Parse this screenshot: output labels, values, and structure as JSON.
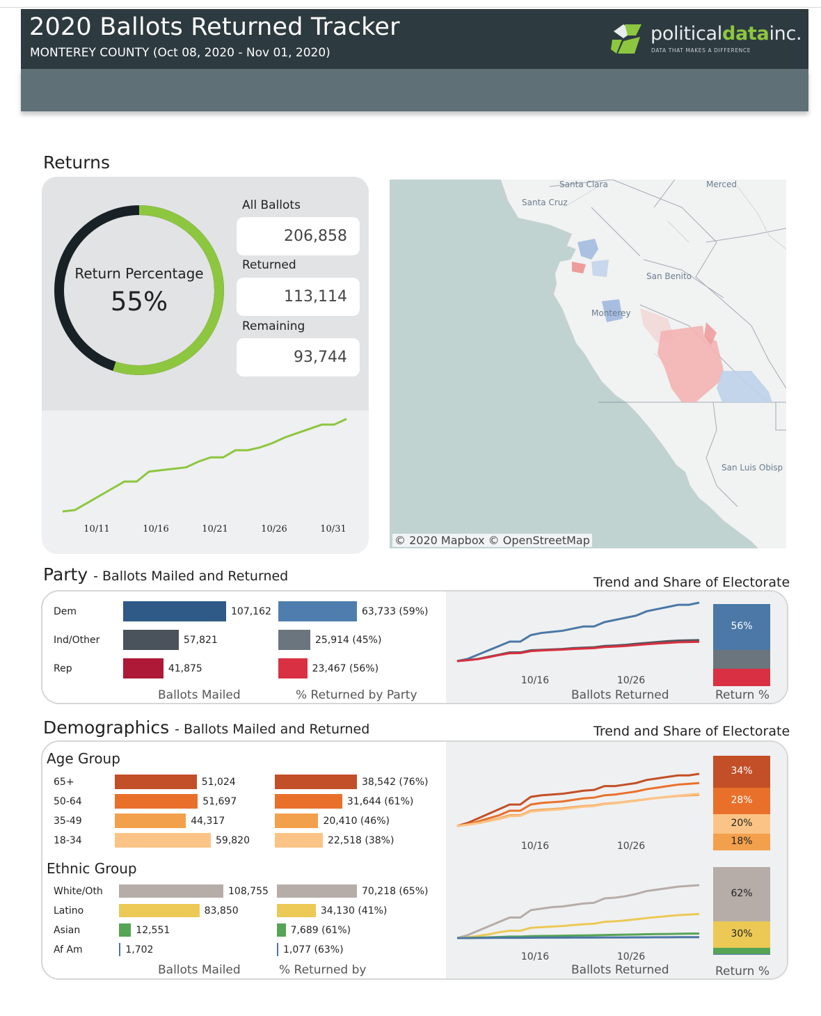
{
  "header": {
    "title": "2020 Ballots Returned Tracker",
    "subtitle": "MONTEREY COUNTY (Oct 08, 2020 - Nov 01, 2020)",
    "logo_text_a": "political",
    "logo_text_b": "data",
    "logo_text_c": "inc.",
    "logo_tagline": "DATA THAT MAKES A DIFFERENCE",
    "colors": {
      "bar": "#2d3a40",
      "subbar": "#5f7077",
      "logo_green": "#8dc63f"
    }
  },
  "returns": {
    "section_title": "Returns",
    "ring_label": "Return Percentage",
    "ring_value": "55%",
    "ring_fraction": 0.55,
    "all_label": "All Ballots",
    "all_value": "206,858",
    "returned_label": "Returned",
    "returned_value": "113,114",
    "remaining_label": "Remaining",
    "remaining_value": "93,744",
    "trend_ticks": [
      "10/11",
      "10/16",
      "10/21",
      "10/26",
      "10/31"
    ],
    "trend_values": [
      0,
      1,
      6,
      11,
      16,
      21,
      21,
      28,
      29,
      30,
      31,
      35,
      38,
      38,
      43,
      43,
      45,
      48,
      52,
      55,
      58,
      61,
      61,
      65
    ],
    "colors": {
      "returned": "#8dc63f",
      "remaining": "#182126"
    }
  },
  "map": {
    "labels": [
      "Santa Clara",
      "Merced",
      "Santa Cruz",
      "San Benito",
      "Monterey",
      "San Luis Obisp"
    ],
    "credit": "© 2020 Mapbox © OpenStreetMap"
  },
  "party": {
    "title": "Party",
    "title_suffix": "Ballots Mailed and Returned",
    "right_caption": "Trend and Share of Electorate",
    "rows": [
      {
        "label": "Dem",
        "mailed": 107162,
        "mailed_text": "107,162",
        "returned": 63733,
        "returned_text": "63,733 (59%)",
        "color": "#2f5a87",
        "ret_color": "#4f7eae"
      },
      {
        "label": "Ind/Other",
        "mailed": 57821,
        "mailed_text": "57,821",
        "returned": 25914,
        "returned_text": "25,914 (45%)",
        "color": "#4a525c",
        "ret_color": "#6a757e"
      },
      {
        "label": "Rep",
        "mailed": 41875,
        "mailed_text": "41,875",
        "returned": 23467,
        "returned_text": "23,467 (56%)",
        "color": "#ad1936",
        "ret_color": "#da3043"
      }
    ],
    "foot_mailed": "Ballots Mailed",
    "foot_pct": "% Returned by Party",
    "foot_trend": "Ballots Returned",
    "foot_share": "Return %",
    "ticks": [
      "10/16",
      "10/26"
    ],
    "share": [
      {
        "label": "56%",
        "value": 56,
        "color": "#4b78a6"
      },
      {
        "label": "",
        "value": 23,
        "color": "#6b757e"
      },
      {
        "label": "",
        "value": 21,
        "color": "#da3043"
      }
    ],
    "trend_series": [
      {
        "name": "Dem",
        "color": "#4b78a6",
        "values": [
          0,
          1,
          3,
          5,
          7,
          9,
          9,
          12,
          13,
          13.5,
          14,
          15,
          16,
          16,
          18,
          19,
          20,
          21,
          23,
          24,
          25,
          26,
          26,
          27
        ]
      },
      {
        "name": "Ind/Other",
        "color": "#4e5660",
        "values": [
          0,
          0.5,
          1,
          2,
          3,
          4,
          4,
          5,
          5.2,
          5.4,
          5.6,
          6,
          6.2,
          6.4,
          7,
          7.2,
          7.5,
          8,
          8.4,
          8.8,
          9.2,
          9.5,
          9.6,
          9.7
        ]
      },
      {
        "name": "Rep",
        "color": "#d9303f",
        "values": [
          0,
          0.4,
          0.9,
          1.8,
          2.8,
          3.6,
          3.7,
          4.6,
          4.9,
          5.1,
          5.3,
          5.6,
          5.8,
          6,
          6.5,
          6.7,
          7,
          7.4,
          7.8,
          8.1,
          8.4,
          8.7,
          8.8,
          8.9
        ]
      }
    ]
  },
  "demo": {
    "title": "Demographics",
    "title_suffix": "Ballots Mailed and Returned",
    "right_caption": "Trend and Share of Electorate",
    "age_title": "Age Group",
    "age_rows": [
      {
        "label": "65+",
        "mailed": 51024,
        "mailed_text": "51,024",
        "returned": 38542,
        "returned_text": "38,542 (76%)",
        "color": "#c24f27"
      },
      {
        "label": "50-64",
        "mailed": 51697,
        "mailed_text": "51,697",
        "returned": 31644,
        "returned_text": "31,644 (61%)",
        "color": "#e9702b"
      },
      {
        "label": "35-49",
        "mailed": 44317,
        "mailed_text": "44,317",
        "returned": 20410,
        "returned_text": "20,410 (46%)",
        "color": "#f3a04d"
      },
      {
        "label": "18-34",
        "mailed": 59820,
        "mailed_text": "59,820",
        "returned": 22518,
        "returned_text": "22,518 (38%)",
        "color": "#fbc486"
      }
    ],
    "age_share": [
      {
        "label": "34%",
        "value": 34,
        "color": "#c24f27"
      },
      {
        "label": "28%",
        "value": 28,
        "color": "#e9702b"
      },
      {
        "label": "20%",
        "value": 20,
        "color": "#fbc486"
      },
      {
        "label": "18%",
        "value": 18,
        "color": "#f3a04d"
      }
    ],
    "age_trend": [
      {
        "name": "65+",
        "color": "#c24f27",
        "values": [
          0,
          2,
          5,
          8,
          11,
          14,
          14,
          19,
          20,
          20.5,
          21,
          22,
          23,
          23.5,
          26,
          26,
          27,
          28,
          30,
          31,
          32,
          33,
          33,
          34
        ]
      },
      {
        "name": "50-64",
        "color": "#e9702b",
        "values": [
          0,
          1,
          3,
          5,
          7,
          10,
          10,
          14,
          15,
          15.5,
          16,
          17,
          18,
          18.5,
          20,
          20.5,
          21.5,
          22.5,
          24,
          25,
          26,
          27,
          27.5,
          28
        ]
      },
      {
        "name": "35-49",
        "color": "#f3a04d",
        "values": [
          0,
          1,
          2,
          3.5,
          5,
          7,
          7,
          10,
          10.6,
          11,
          11.5,
          12.3,
          13,
          13.4,
          14.5,
          15,
          15.8,
          16.6,
          17.5,
          18.3,
          19,
          19.6,
          20,
          20.3
        ]
      },
      {
        "name": "18-34",
        "color": "#fbc486",
        "values": [
          0,
          0.8,
          1.8,
          3.2,
          4.6,
          6.4,
          6.6,
          9.4,
          10,
          10.5,
          11,
          11.8,
          12.6,
          13,
          14.2,
          14.8,
          15.6,
          16.4,
          17.4,
          18.3,
          19.1,
          19.8,
          20.4,
          21
        ]
      }
    ],
    "ethnic_title": "Ethnic Group",
    "ethnic_rows": [
      {
        "label": "White/Oth",
        "mailed": 108755,
        "mailed_text": "108,755",
        "returned": 70218,
        "returned_text": "70,218 (65%)",
        "color": "#b6aca8"
      },
      {
        "label": "Latino",
        "mailed": 83850,
        "mailed_text": "83,850",
        "returned": 34130,
        "returned_text": "34,130 (41%)",
        "color": "#ecc955"
      },
      {
        "label": "Asian",
        "mailed": 12551,
        "mailed_text": "12,551",
        "returned": 7689,
        "returned_text": "7,689 (61%)",
        "color": "#56a455"
      },
      {
        "label": "Af Am",
        "mailed": 1702,
        "mailed_text": "1,702",
        "returned": 1077,
        "returned_text": "1,077 (63%)",
        "color": "#4a76a4"
      }
    ],
    "ethnic_share": [
      {
        "label": "62%",
        "value": 62,
        "color": "#b6aca8"
      },
      {
        "label": "30%",
        "value": 30,
        "color": "#ecc955"
      },
      {
        "label": "",
        "value": 7,
        "color": "#56a455"
      },
      {
        "label": "",
        "value": 1,
        "color": "#4a76a4"
      }
    ],
    "ethnic_trend": [
      {
        "name": "White/Oth",
        "color": "#b6aca8",
        "values": [
          0,
          2,
          5,
          8,
          11,
          14,
          14,
          19,
          20,
          21,
          21.5,
          22.5,
          23.5,
          24,
          27,
          27.5,
          28.5,
          30,
          32,
          33,
          34,
          35,
          35.5,
          36
        ]
      },
      {
        "name": "Latino",
        "color": "#ecc955",
        "values": [
          0,
          0.5,
          1.5,
          2.5,
          4,
          5,
          5,
          7,
          7.4,
          7.8,
          8.2,
          8.8,
          9.4,
          9.8,
          11,
          11.4,
          12,
          12.8,
          13.6,
          14.3,
          15,
          15.6,
          16,
          16.4
        ]
      },
      {
        "name": "Asian",
        "color": "#56a455",
        "values": [
          0,
          0.1,
          0.3,
          0.5,
          0.7,
          1,
          1,
          1.3,
          1.4,
          1.5,
          1.6,
          1.7,
          1.8,
          1.9,
          2.1,
          2.2,
          2.3,
          2.4,
          2.6,
          2.7,
          2.8,
          2.9,
          3,
          3.1
        ]
      },
      {
        "name": "Af Am",
        "color": "#4a76a4",
        "values": [
          0,
          0,
          0.05,
          0.1,
          0.15,
          0.2,
          0.2,
          0.25,
          0.27,
          0.29,
          0.31,
          0.33,
          0.35,
          0.36,
          0.4,
          0.42,
          0.44,
          0.47,
          0.5,
          0.52,
          0.55,
          0.57,
          0.58,
          0.6
        ]
      }
    ],
    "foot_mailed": "Ballots Mailed",
    "foot_pct": "% Returned by",
    "foot_trend": "Ballots Returned",
    "foot_share": "Return %",
    "ticks": [
      "10/16",
      "10/26"
    ]
  }
}
